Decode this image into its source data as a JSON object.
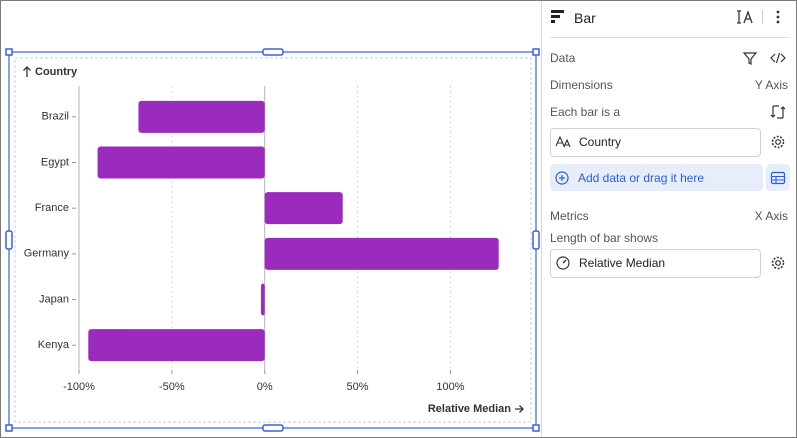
{
  "chart_data": {
    "type": "bar",
    "orientation": "horizontal",
    "y_label": "Country",
    "x_label": "Relative Median",
    "categories": [
      "Brazil",
      "Egypt",
      "France",
      "Germany",
      "Japan",
      "Kenya"
    ],
    "values": [
      -68,
      -90,
      42,
      126,
      -2,
      -95
    ],
    "color": "#9b2bbd",
    "xlim": [
      -100,
      138
    ],
    "xticks": [
      {
        "value": -100,
        "label": "-100%"
      },
      {
        "value": -50,
        "label": "-50%"
      },
      {
        "value": 0,
        "label": "0%"
      },
      {
        "value": 50,
        "label": "50%"
      },
      {
        "value": 100,
        "label": "100%"
      }
    ],
    "grid": true
  },
  "panel": {
    "title": "Bar",
    "data": "Data",
    "dimensions": "Dimensions",
    "y_axis": "Y Axis",
    "each_bar": "Each bar is a",
    "dimension_field": "Country",
    "add_data": "Add data or drag it here",
    "metrics": "Metrics",
    "x_axis": "X Axis",
    "length": "Length of bar shows",
    "metric_field": "Relative Median"
  }
}
